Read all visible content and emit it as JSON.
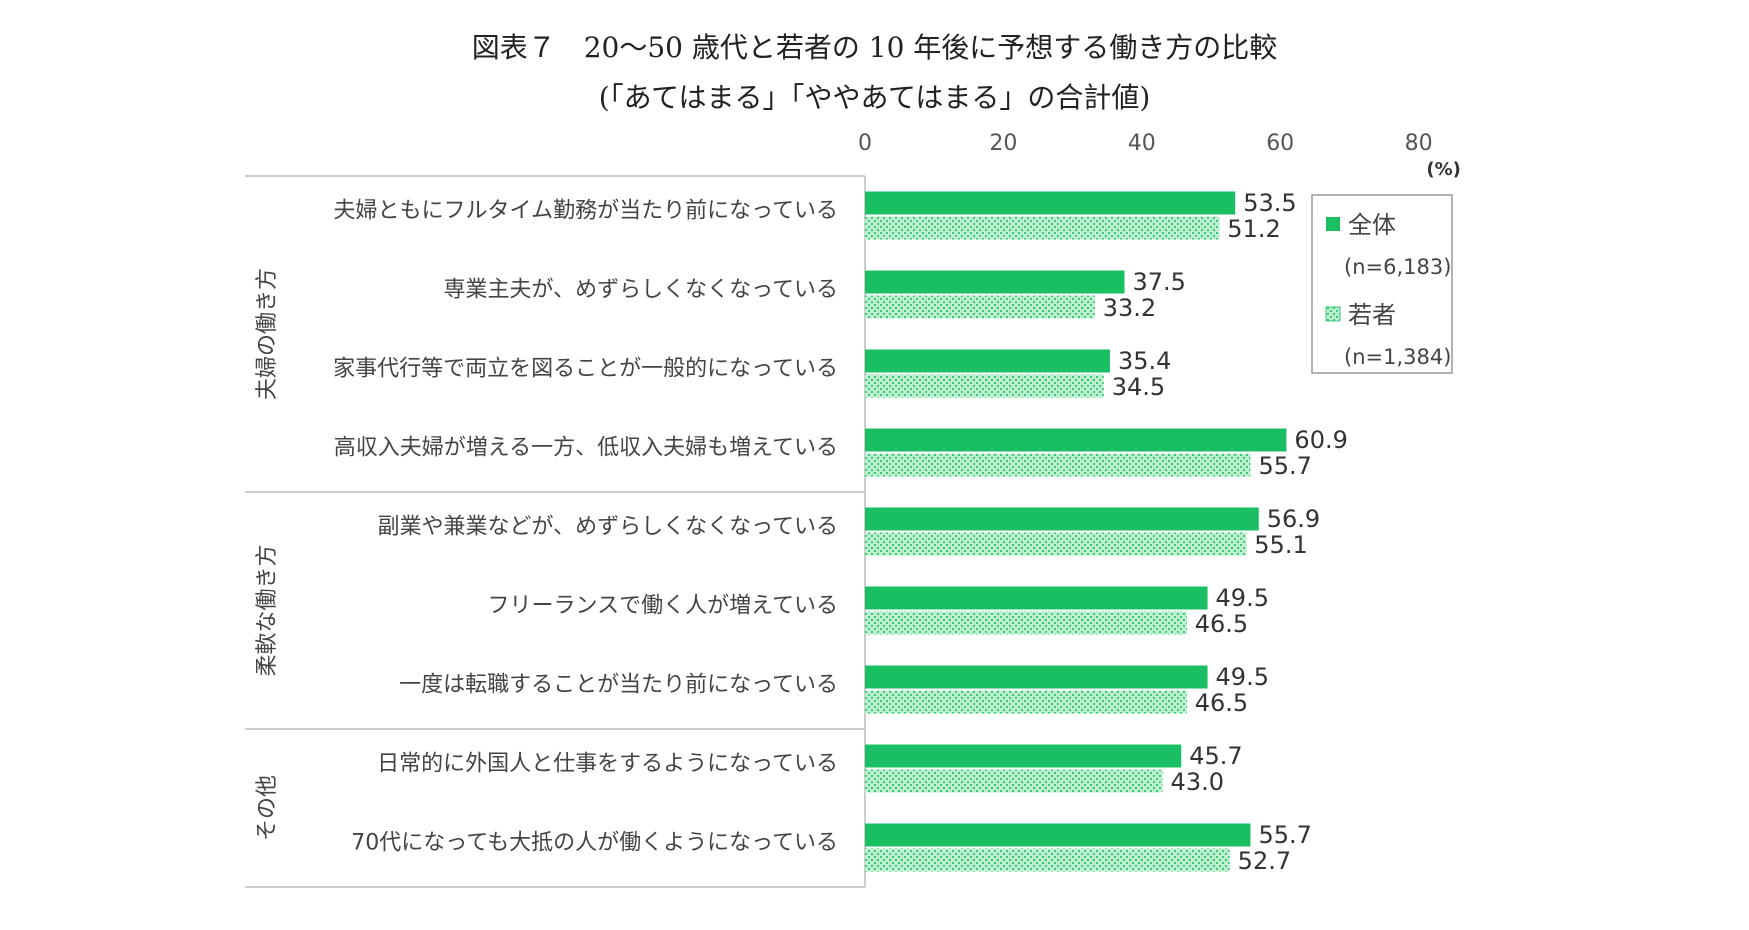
{
  "title": "図表７　20〜50 歳代と若者の 10 年後に予想する働き方の比較",
  "subtitle": "(「あてはまる」「ややあてはまる」の合計値)",
  "unit": "(%)",
  "colors": {
    "all": "#1bbf63",
    "youth_fill": "#bdf0cf",
    "youth_dot": "#3cc879",
    "axis": "#cccccc"
  },
  "chart_data": {
    "type": "bar",
    "orientation": "horizontal",
    "xlim": [
      0,
      80
    ],
    "ticks": [
      0,
      20,
      40,
      60,
      80
    ],
    "xlabel": "",
    "ylabel": "",
    "groups": [
      {
        "label": "夫婦の働き方",
        "count": 4
      },
      {
        "label": "柔軟な働き方",
        "count": 3
      },
      {
        "label": "その他",
        "count": 2
      }
    ],
    "categories": [
      "夫婦ともにフルタイム勤務が当たり前になっている",
      "専業主夫が、めずらしくなくなっている",
      "家事代行等で両立を図ることが一般的になっている",
      "高収入夫婦が増える一方、低収入夫婦も増えている",
      "副業や兼業などが、めずらしくなくなっている",
      "フリーランスで働く人が増えている",
      "一度は転職することが当たり前になっている",
      "日常的に外国人と仕事をするようになっている",
      "70代になっても大抵の人が働くようになっている"
    ],
    "series": [
      {
        "name": "全体",
        "n": "(n=6,183)",
        "values": [
          53.5,
          37.5,
          35.4,
          60.9,
          56.9,
          49.5,
          49.5,
          45.7,
          55.7
        ],
        "labels": [
          "53.5",
          "37.5",
          "35.4",
          "60.9",
          "56.9",
          "49.5",
          "49.5",
          "45.7",
          "55.7"
        ]
      },
      {
        "name": "若者",
        "n": "(n=1,384)",
        "values": [
          51.2,
          33.2,
          34.5,
          55.7,
          55.1,
          46.5,
          46.5,
          43.0,
          52.7
        ],
        "labels": [
          "51.2",
          "33.2",
          "34.5",
          "55.7",
          "55.1",
          "46.5",
          "46.5",
          "43.0",
          "52.7"
        ]
      }
    ],
    "legend": "right"
  }
}
